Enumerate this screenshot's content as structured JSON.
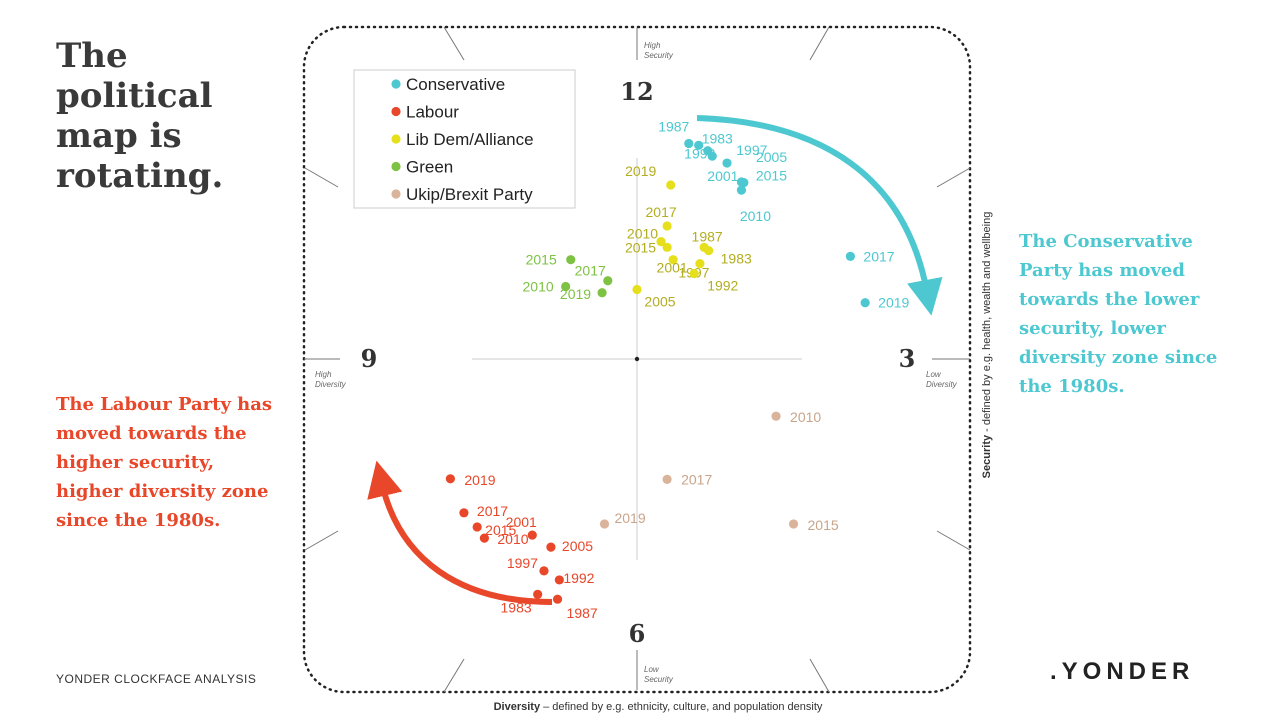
{
  "title": "The political map is rotating.",
  "note_right": "The Conservative Party has moved towards the lower security, lower diversity zone since the 1980s.",
  "note_left": "The Labour Party has moved towards the higher security, higher diversity zone since the 1980s.",
  "footer": "YONDER CLOCKFACE ANALYSIS",
  "logo": ".YONDER",
  "colors": {
    "Conservative": "#4dc8d0",
    "Labour": "#e8472a",
    "Lib Dem/Alliance": "#e6e01c",
    "Green": "#7dc243",
    "Ukip/Brexit Party": "#d9b49a",
    "text": "#3a3a3a"
  },
  "chart_data": {
    "type": "scatter",
    "title": "",
    "clock_numbers": {
      "top": "12",
      "right": "3",
      "bottom": "6",
      "left": "9"
    },
    "axis_tags": {
      "top": [
        "High",
        "Security"
      ],
      "right": [
        "Low",
        "Diversity"
      ],
      "bottom": [
        "Low",
        "Security"
      ],
      "left": [
        "High",
        "Diversity"
      ]
    },
    "xlabel_bold": "Diversity",
    "xlabel_rest": " – defined by e.g. ethnicity, culture, and population density",
    "ylabel_bold": "Security",
    "ylabel_rest": " - defined by e.g. health, wealth and wellbeing",
    "xlim": [
      -10,
      10
    ],
    "ylim": [
      -10,
      10
    ],
    "legend": [
      "Conservative",
      "Labour",
      "Lib Dem/Alliance",
      "Green",
      "Ukip/Brexit Party"
    ],
    "legend_position": "top-left",
    "series": [
      {
        "name": "Conservative",
        "label_color": "#4dc8d0",
        "points": [
          {
            "year": "1987",
            "x": 1.72,
            "y": 7.16
          },
          {
            "year": "1983",
            "x": 2.05,
            "y": 7.1
          },
          {
            "year": "1997",
            "x": 2.5,
            "y": 6.74
          },
          {
            "year": "1992",
            "x": 2.35,
            "y": 6.92
          },
          {
            "year": "2005",
            "x": 2.99,
            "y": 6.51
          },
          {
            "year": "2001",
            "x": 3.47,
            "y": 5.88
          },
          {
            "year": "2015",
            "x": 3.55,
            "y": 5.86
          },
          {
            "year": "2010",
            "x": 3.47,
            "y": 5.61
          },
          {
            "year": "2017",
            "x": 7.09,
            "y": 3.41
          },
          {
            "year": "2019",
            "x": 7.58,
            "y": 1.87
          }
        ]
      },
      {
        "name": "Labour",
        "label_color": "#e8472a",
        "points": [
          {
            "year": "2019",
            "x": -6.2,
            "y": -3.98
          },
          {
            "year": "2017",
            "x": -5.75,
            "y": -5.11
          },
          {
            "year": "2015",
            "x": -5.31,
            "y": -5.58
          },
          {
            "year": "2010",
            "x": -5.07,
            "y": -5.95
          },
          {
            "year": "2001",
            "x": -3.48,
            "y": -5.85
          },
          {
            "year": "2005",
            "x": -2.86,
            "y": -6.25
          },
          {
            "year": "1997",
            "x": -3.09,
            "y": -7.04
          },
          {
            "year": "1992",
            "x": -2.58,
            "y": -7.34
          },
          {
            "year": "1983",
            "x": -3.3,
            "y": -7.82
          },
          {
            "year": "1987",
            "x": -2.64,
            "y": -7.98
          }
        ]
      },
      {
        "name": "Lib Dem/Alliance",
        "label_color": "#b3ad20",
        "points": [
          {
            "year": "2019",
            "x": 1.12,
            "y": 5.78
          },
          {
            "year": "2017",
            "x": 1.0,
            "y": 4.42
          },
          {
            "year": "2010",
            "x": 0.8,
            "y": 3.9
          },
          {
            "year": "2015",
            "x": 1.0,
            "y": 3.71
          },
          {
            "year": "1987",
            "x": 2.23,
            "y": 3.71
          },
          {
            "year": "1983",
            "x": 2.38,
            "y": 3.6
          },
          {
            "year": "2001",
            "x": 1.2,
            "y": 3.3
          },
          {
            "year": "1997",
            "x": 2.09,
            "y": 3.17
          },
          {
            "year": "1992",
            "x": 1.9,
            "y": 2.84
          },
          {
            "year": "2005",
            "x": 0.0,
            "y": 2.31
          }
        ]
      },
      {
        "name": "Green",
        "label_color": "#7dc243",
        "points": [
          {
            "year": "2015",
            "x": -2.2,
            "y": 3.3
          },
          {
            "year": "2010",
            "x": -2.37,
            "y": 2.41
          },
          {
            "year": "2017",
            "x": -0.97,
            "y": 2.6
          },
          {
            "year": "2019",
            "x": -1.16,
            "y": 2.2
          }
        ]
      },
      {
        "name": "Ukip/Brexit Party",
        "label_color": "#c9a48a",
        "points": [
          {
            "year": "2010",
            "x": 4.62,
            "y": -1.9
          },
          {
            "year": "2017",
            "x": 1.0,
            "y": -4.0
          },
          {
            "year": "2019",
            "x": -1.08,
            "y": -5.48
          },
          {
            "year": "2015",
            "x": 5.2,
            "y": -5.48
          }
        ]
      }
    ]
  }
}
